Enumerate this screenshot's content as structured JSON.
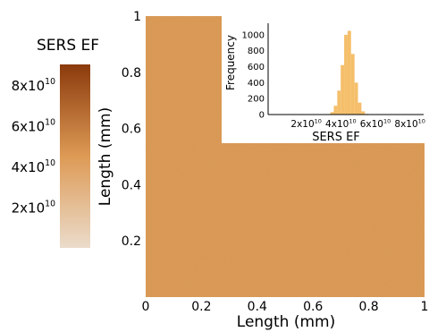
{
  "colorbar": {
    "title": "SERS EF",
    "tick_labels": [
      {
        "base": "8x10",
        "exp": "10",
        "value": 80000000000.0
      },
      {
        "base": "6x10",
        "exp": "10",
        "value": 60000000000.0
      },
      {
        "base": "4x10",
        "exp": "10",
        "value": 40000000000.0
      },
      {
        "base": "2x10",
        "exp": "10",
        "value": 20000000000.0
      }
    ],
    "range": [
      0,
      90000000000.0
    ],
    "color_low": "#ebdccb",
    "color_mid": "#dd9a55",
    "color_high": "#8b3a0c"
  },
  "chart_data": [
    {
      "type": "heatmap",
      "title": "",
      "xlabel": "Length (mm)",
      "ylabel": "Length (mm)",
      "xlim": [
        0,
        1
      ],
      "ylim": [
        0,
        1
      ],
      "x_ticks": [
        "0",
        "0.2",
        "0.4",
        "0.6",
        "0.8",
        "1"
      ],
      "y_ticks": [
        "0.2",
        "0.4",
        "0.6",
        "0.8",
        "1"
      ],
      "values_summary": "nearly uniform enhancement factor across the map, approx 4.5x10^10",
      "typical_value": 45000000000.0,
      "grid": false
    },
    {
      "type": "bar",
      "title": "",
      "xlabel": "SERS EF",
      "ylabel": "Frequency",
      "x_ticks": [
        {
          "base": "2x10",
          "exp": "10",
          "value": 20000000000.0
        },
        {
          "base": "4x10",
          "exp": "10",
          "value": 40000000000.0
        },
        {
          "base": "6x10",
          "exp": "10",
          "value": 60000000000.0
        },
        {
          "base": "8x10",
          "exp": "10",
          "value": 80000000000.0
        }
      ],
      "y_ticks": [
        "0",
        "200",
        "400",
        "600",
        "800",
        "1000"
      ],
      "xlim": [
        0,
        90000000000.0
      ],
      "ylim": [
        0,
        1100
      ],
      "bar_color": "#f5bf6b",
      "bins": [
        35000000000.0,
        37000000000.0,
        39000000000.0,
        41000000000.0,
        43000000000.0,
        45000000000.0,
        47000000000.0,
        49000000000.0,
        51000000000.0,
        53000000000.0,
        55000000000.0,
        57000000000.0
      ],
      "values": [
        5,
        30,
        110,
        300,
        620,
        1000,
        1050,
        760,
        400,
        150,
        40,
        8
      ]
    }
  ]
}
